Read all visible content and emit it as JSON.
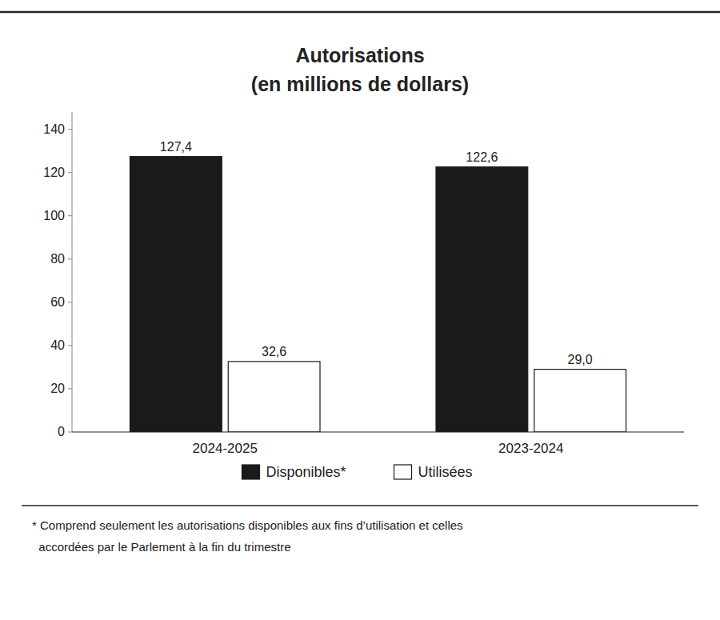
{
  "chart_data": {
    "type": "bar",
    "title": "Autorisations",
    "subtitle": "(en millions de dollars)",
    "categories": [
      "2024-2025",
      "2023-2024"
    ],
    "series": [
      {
        "name": "Disponibles*",
        "color": "#1a1a1a",
        "values": [
          127.4,
          122.6
        ],
        "value_labels": [
          "127,4",
          "122,6"
        ]
      },
      {
        "name": "Utilisées",
        "color": "#ffffff",
        "values": [
          32.6,
          29.0
        ],
        "value_labels": [
          "32,6",
          "29,0"
        ]
      }
    ],
    "ylim": [
      0,
      148
    ],
    "yticks": [
      0,
      20,
      40,
      60,
      80,
      100,
      120,
      140
    ],
    "grid": false,
    "legend": "bottom",
    "data_labels": true,
    "annotations": [
      "* Comprend seulement les autorisations disponibles aux fins d’utilisation et celles",
      "  accordées par le Parlement à la fin du trimestre"
    ]
  }
}
